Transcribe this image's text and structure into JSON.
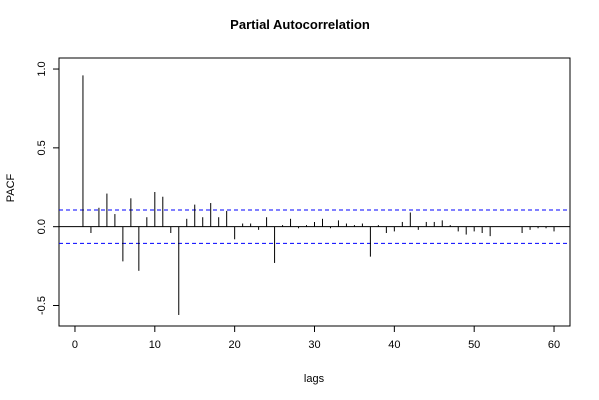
{
  "chart_data": {
    "type": "bar",
    "title": "Partial Autocorrelation",
    "xlabel": "lags",
    "ylabel": "PACF",
    "xlim": [
      -2,
      62
    ],
    "ylim": [
      -0.63,
      1.07
    ],
    "xticks": [
      0,
      10,
      20,
      30,
      40,
      50,
      60
    ],
    "yticks": [
      -0.5,
      0.0,
      0.5,
      1.0
    ],
    "ytick_labels": [
      "-0.5",
      "0.0",
      "0.5",
      "1.0"
    ],
    "confidence_bounds": [
      0.106,
      -0.106
    ],
    "colors": {
      "bars": "#000000",
      "bounds": "#0000ff",
      "zero_line": "#000000"
    },
    "series": [
      {
        "lags": [
          1,
          2,
          3,
          4,
          5,
          6,
          7,
          8,
          9,
          10,
          11,
          12,
          13,
          14,
          15,
          16,
          17,
          18,
          19,
          20,
          21,
          22,
          23,
          24,
          25,
          26,
          27,
          28,
          29,
          30,
          31,
          32,
          33,
          34,
          35,
          36,
          37,
          38,
          39,
          40,
          41,
          42,
          43,
          44,
          45,
          46,
          47,
          48,
          49,
          50,
          51,
          52,
          53,
          54,
          55,
          56,
          57,
          58,
          59,
          60
        ],
        "values": [
          0.96,
          -0.04,
          0.12,
          0.21,
          0.08,
          -0.22,
          0.18,
          -0.28,
          0.06,
          0.22,
          0.19,
          -0.04,
          -0.56,
          0.05,
          0.14,
          0.06,
          0.15,
          0.06,
          0.1,
          -0.08,
          0.02,
          0.02,
          -0.02,
          0.06,
          -0.23,
          0.01,
          0.05,
          -0.01,
          0.01,
          0.03,
          0.05,
          -0.01,
          0.04,
          0.02,
          0.01,
          0.02,
          -0.19,
          0.01,
          -0.04,
          -0.03,
          0.03,
          0.09,
          -0.02,
          0.03,
          0.03,
          0.04,
          0.01,
          -0.03,
          -0.05,
          -0.03,
          -0.04,
          -0.06,
          0.0,
          0.0,
          0.0,
          -0.04,
          -0.02,
          -0.01,
          -0.01,
          -0.03
        ]
      }
    ]
  }
}
